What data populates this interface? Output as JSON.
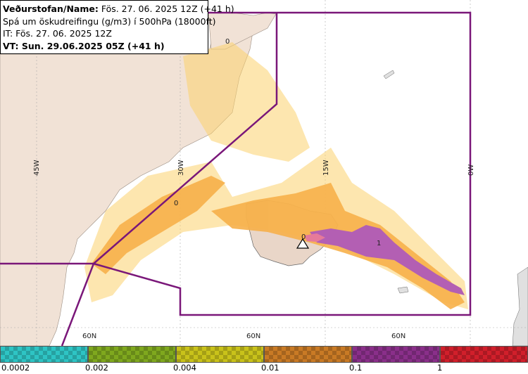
{
  "header": {
    "line1_bold": "Veðurstofan/Name:",
    "line1_rest": " Fös. 27. 06. 2025 12Z (+41 h)",
    "line2": "Spá um öskudreifingu (g/m3) í 500hPa (18000ft)",
    "line3": "IT: Fös. 27. 06. 2025 12Z",
    "line4": "VT: Sun. 29.06.2025 05Z (+41 h)"
  },
  "map_labels": {
    "lon_45w": "45W",
    "lon_30w": "30W",
    "lon_15w": "15W",
    "lon_0w": "0W",
    "lat_a": "60N",
    "lat_b": "60N",
    "lat_c": "60N",
    "contour_0_a": "0",
    "contour_0_b": "0",
    "contour_0_c": "0",
    "contour_1": "1",
    "volcano": "volcano-triangle-icon"
  },
  "legend": {
    "colors": [
      "#2ec4c4",
      "#7fa81e",
      "#c9c21a",
      "#c97a25",
      "#8a2f8a",
      "#d11f2b"
    ],
    "ticks": [
      "0.0002",
      "0.002",
      "0.004",
      "0.01",
      "0.1",
      "1"
    ]
  },
  "colors": {
    "land": "#f1e2d6",
    "ocean": "#ffffff",
    "boundary": "#7a1779",
    "ash_low": "#fcd26e",
    "ash_mid": "#f7b04a",
    "ash_high": "#b35fb3",
    "ash_peak": "#e67a9a"
  }
}
